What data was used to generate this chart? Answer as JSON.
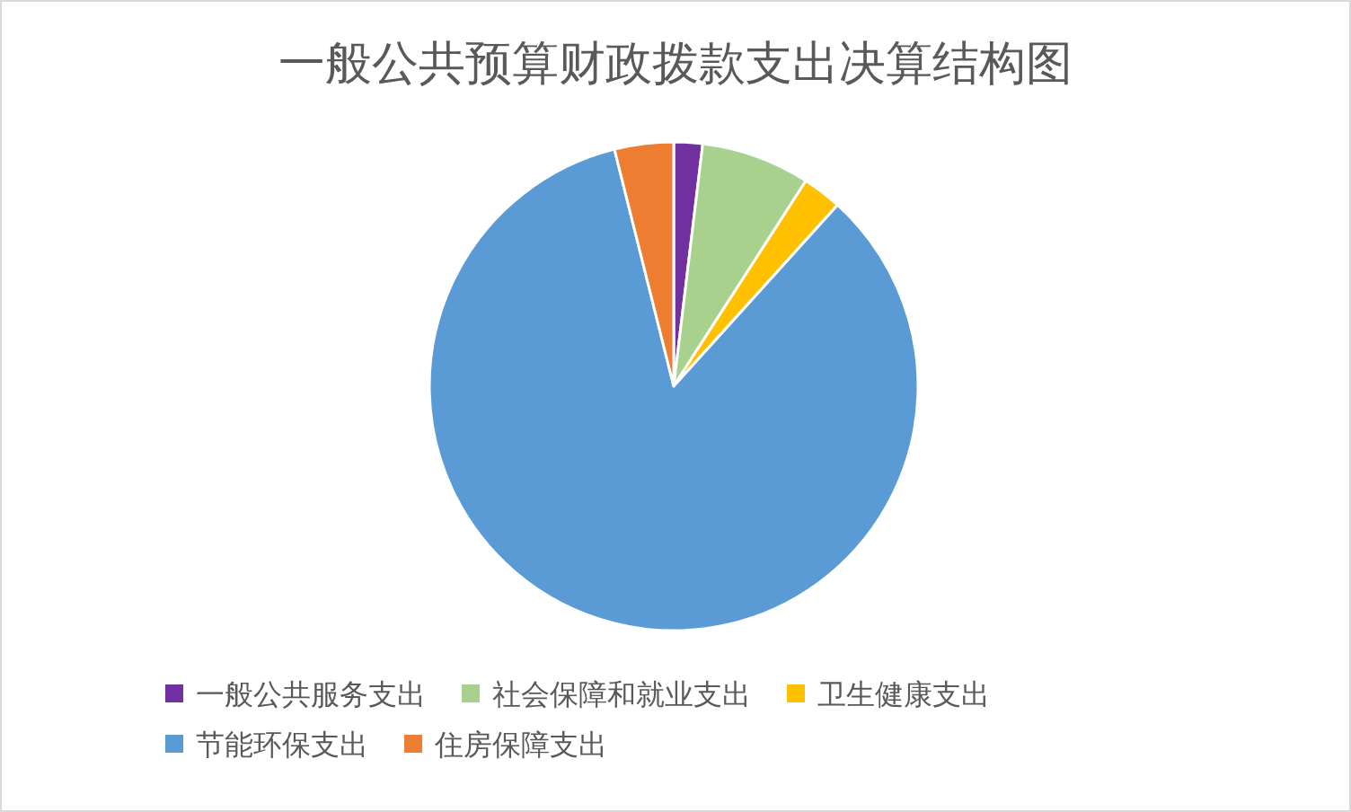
{
  "chart_data": {
    "type": "pie",
    "title": "一般公共预算财政拨款支出决算结构图",
    "categories": [
      "一般公共服务支出",
      "社会保障和就业支出",
      "卫生健康支出",
      "节能环保支出",
      "住房保障支出"
    ],
    "values": [
      1.9,
      7.2,
      2.6,
      84.4,
      3.9
    ],
    "colors": [
      "#7030a0",
      "#a9d18e",
      "#ffc000",
      "#5b9bd5",
      "#ed7d31"
    ],
    "legend": "bottom"
  }
}
